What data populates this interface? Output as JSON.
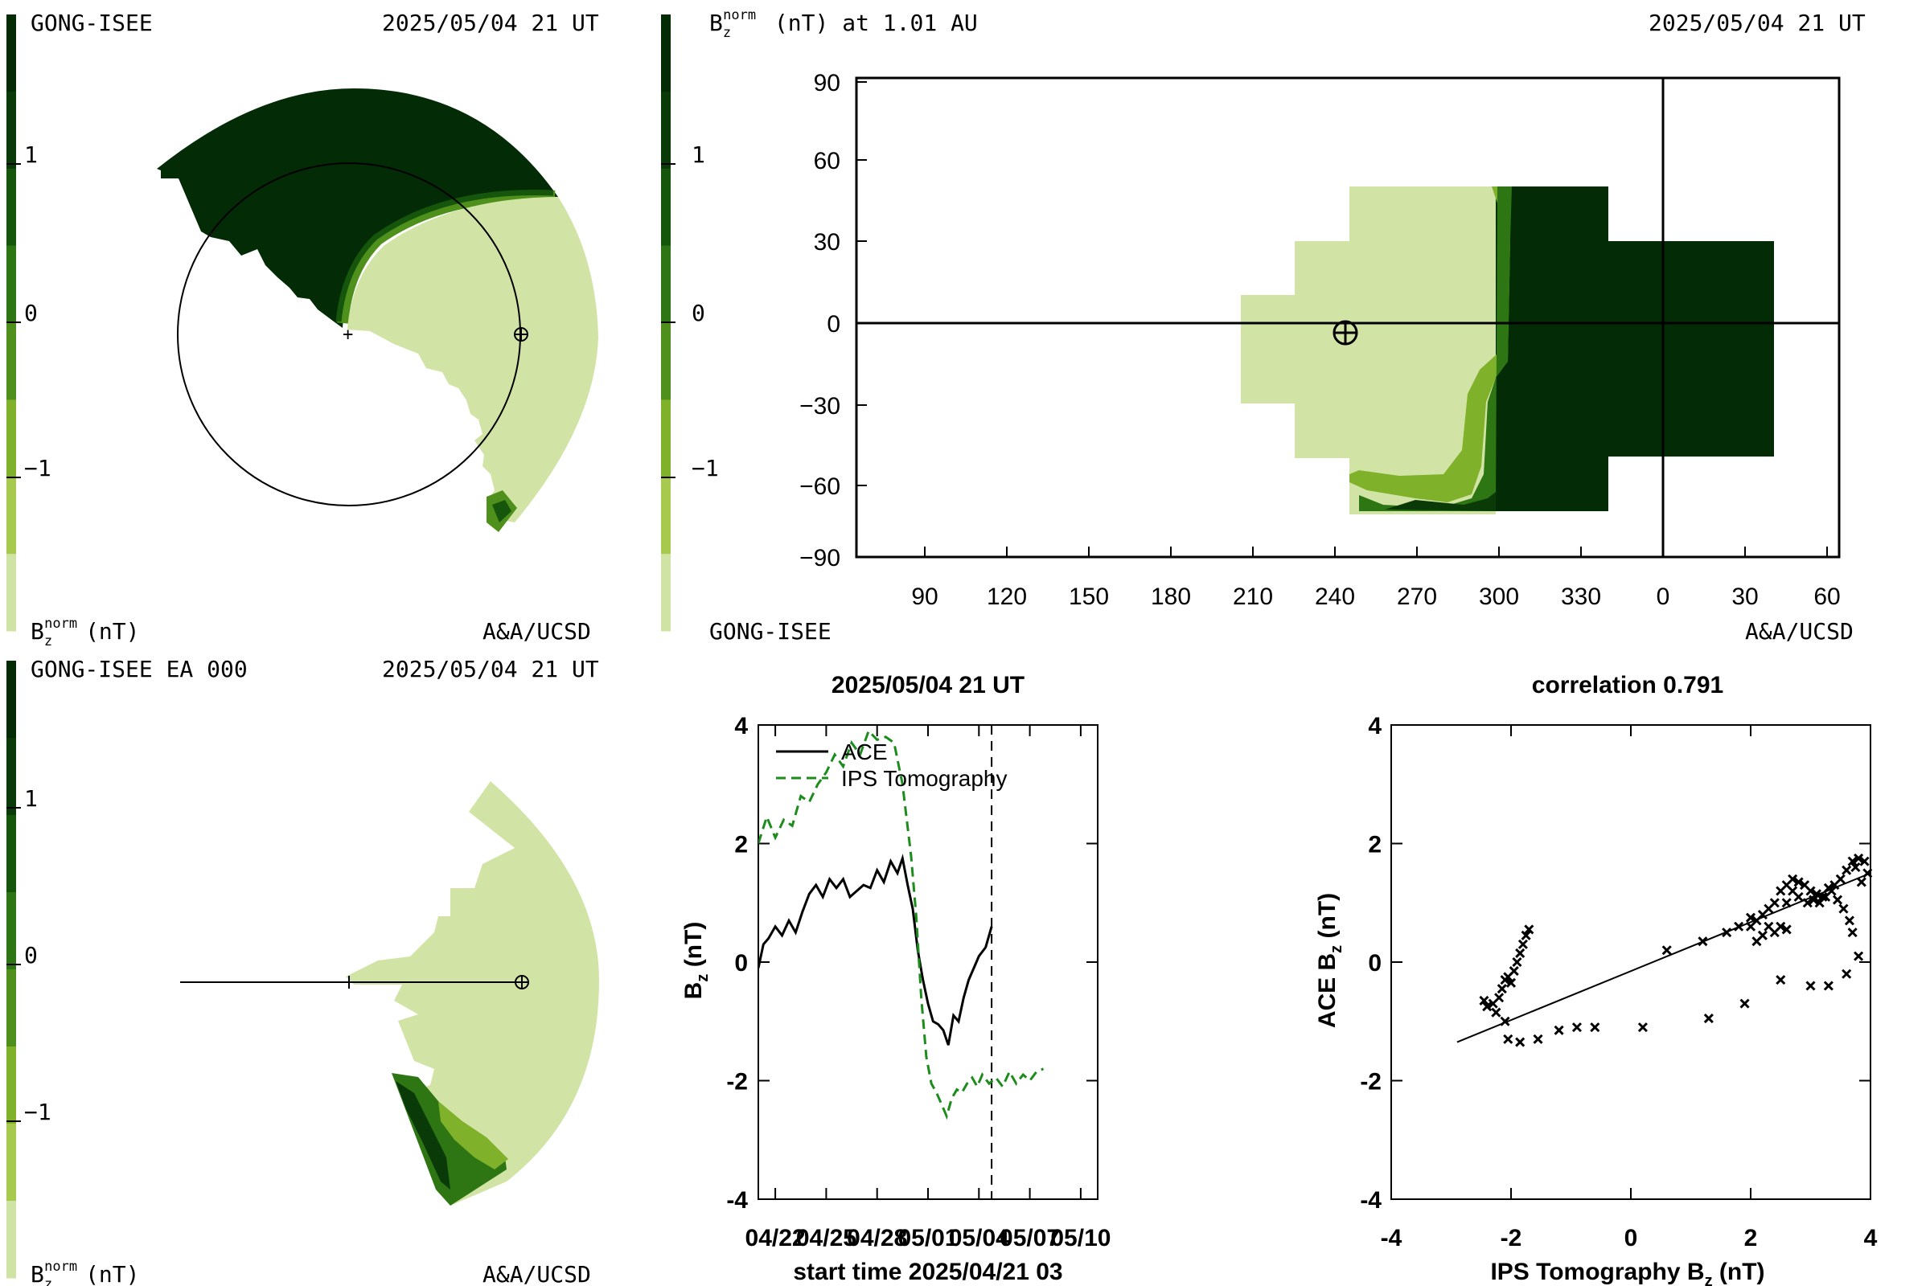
{
  "colors": {
    "scale": [
      "#cfe3a5",
      "#a6c94e",
      "#7fb12a",
      "#4f8f1b",
      "#2d7613",
      "#16550c",
      "#0a3a08",
      "#032b05"
    ],
    "light": "#d2e4a5",
    "dark": "#032b05",
    "ace_line": "#000000",
    "ips_line": "#1c8c1c"
  },
  "colorbar": {
    "ticks": [
      "1",
      "0",
      "−1"
    ]
  },
  "panels": {
    "top_left": {
      "title_left": "GONG-ISEE",
      "title_right": "2025/05/04 21 UT",
      "bottom_left": "B",
      "bottom_right": "A&A/UCSD"
    },
    "top_right": {
      "title_left": "B",
      "title_left_suffix": " (nT) at 1.01 AU",
      "title_right": "2025/05/04 21 UT",
      "bottom_left": "GONG-ISEE",
      "bottom_right": "A&A/UCSD"
    },
    "bottom_left": {
      "title_left": "GONG-ISEE EA 000",
      "title_right": "2025/05/04 21 UT",
      "bottom_left": "B",
      "bottom_right": "A&A/UCSD"
    }
  },
  "units": {
    "nT": "(nT)",
    "sub_z": "z",
    "sup_norm": "norm"
  },
  "chart_data": [
    {
      "type": "heatmap",
      "name": "synoptic map",
      "x_ticks": [
        "90",
        "120",
        "150",
        "180",
        "210",
        "240",
        "270",
        "300",
        "330",
        "0",
        "30",
        "60"
      ],
      "y_ticks": [
        "90",
        "60",
        "30",
        "0",
        "−30",
        "−60",
        "−90"
      ],
      "ylim": [
        -90,
        90
      ],
      "earth_position": [
        243,
        -3
      ]
    },
    {
      "type": "line",
      "title": "2025/05/04 21 UT",
      "xlabel": "start time 2025/04/21 03",
      "ylabel": "B",
      "ylabel_sub": "z",
      "ylabel_suffix": " (nT)",
      "ylim": [
        -4,
        4
      ],
      "xlim": [
        0,
        20
      ],
      "x_tick_labels": [
        "04/22",
        "04/25",
        "04/28",
        "05/01",
        "05/04",
        "05/07",
        "05/10"
      ],
      "x_tick_values": [
        1,
        4,
        7,
        10,
        13,
        16,
        19
      ],
      "y_ticks": [
        "4",
        "2",
        "0",
        "-2",
        "-4"
      ],
      "vline_x": 13.75,
      "series": [
        {
          "name": "ACE",
          "style": "solid",
          "x": [
            0,
            0.3,
            0.6,
            1,
            1.4,
            1.8,
            2.2,
            2.6,
            3,
            3.4,
            3.8,
            4.2,
            4.6,
            5,
            5.4,
            5.8,
            6.2,
            6.6,
            7,
            7.4,
            7.8,
            8.2,
            8.5,
            8.8,
            9.1,
            9.4,
            9.7,
            10,
            10.3,
            10.6,
            10.9,
            11.2,
            11.5,
            11.8,
            12.1,
            12.4,
            12.7,
            13,
            13.4,
            13.75
          ],
          "y": [
            -0.1,
            0.3,
            0.4,
            0.6,
            0.45,
            0.7,
            0.5,
            0.85,
            1.15,
            1.3,
            1.1,
            1.4,
            1.25,
            1.4,
            1.1,
            1.2,
            1.3,
            1.25,
            1.55,
            1.35,
            1.7,
            1.5,
            1.75,
            1.3,
            0.9,
            0.2,
            -0.3,
            -0.7,
            -1.0,
            -1.05,
            -1.15,
            -1.4,
            -0.9,
            -1.0,
            -0.6,
            -0.3,
            -0.1,
            0.1,
            0.25,
            0.6
          ]
        },
        {
          "name": "IPS Tomography",
          "style": "dashed",
          "x": [
            0,
            0.5,
            1,
            1.5,
            2,
            2.5,
            3,
            3.5,
            4,
            4.5,
            5,
            5.5,
            6,
            6.5,
            7,
            7.5,
            8,
            8.5,
            9,
            9.3,
            9.6,
            9.9,
            10.2,
            10.5,
            10.8,
            11.1,
            11.4,
            11.7,
            12,
            12.3,
            12.6,
            12.9,
            13.2,
            13.6,
            14,
            14.4,
            14.8,
            15.2,
            15.6,
            16,
            16.4,
            16.8
          ],
          "y": [
            2.0,
            2.45,
            2.1,
            2.4,
            2.3,
            2.8,
            2.7,
            3.0,
            3.2,
            3.5,
            3.3,
            3.7,
            3.5,
            3.9,
            3.75,
            3.8,
            3.7,
            3.0,
            1.8,
            0.8,
            -0.6,
            -1.6,
            -2.05,
            -2.2,
            -2.4,
            -2.6,
            -2.3,
            -2.15,
            -2.2,
            -2.05,
            -1.95,
            -2.1,
            -1.9,
            -2.05,
            -1.95,
            -2.1,
            -1.85,
            -2.05,
            -1.9,
            -2.0,
            -1.85,
            -1.8
          ]
        }
      ]
    },
    {
      "type": "scatter",
      "title": "correlation 0.791",
      "xlabel": "IPS Tomography B",
      "xlabel_sub": "z",
      "xlabel_suffix": " (nT)",
      "ylabel": "ACE B",
      "ylabel_sub": "z",
      "ylabel_suffix": " (nT)",
      "xlim": [
        -4,
        4
      ],
      "ylim": [
        -4,
        4
      ],
      "x_ticks": [
        "-4",
        "-2",
        "0",
        "2",
        "4"
      ],
      "y_ticks": [
        "4",
        "2",
        "0",
        "-2",
        "-4"
      ],
      "fit_line": {
        "x": [
          -2.9,
          4.0
        ],
        "y": [
          -1.35,
          1.5
        ]
      },
      "points": [
        [
          -2.3,
          -0.7
        ],
        [
          -2.25,
          -0.85
        ],
        [
          -2.2,
          -0.6
        ],
        [
          -2.15,
          -0.45
        ],
        [
          -2.1,
          -0.3
        ],
        [
          -2.05,
          -0.25
        ],
        [
          -2.0,
          -0.35
        ],
        [
          -1.95,
          -0.15
        ],
        [
          -1.9,
          0.0
        ],
        [
          -1.85,
          0.15
        ],
        [
          -1.8,
          0.3
        ],
        [
          -1.75,
          0.45
        ],
        [
          -1.7,
          0.55
        ],
        [
          -2.4,
          -0.75
        ],
        [
          -2.45,
          -0.65
        ],
        [
          -2.1,
          -1.0
        ],
        [
          -2.05,
          -1.3
        ],
        [
          -1.85,
          -1.35
        ],
        [
          -1.55,
          -1.3
        ],
        [
          -1.2,
          -1.15
        ],
        [
          -0.9,
          -1.1
        ],
        [
          -0.6,
          -1.1
        ],
        [
          0.2,
          -1.1
        ],
        [
          1.3,
          -0.95
        ],
        [
          1.9,
          -0.7
        ],
        [
          2.5,
          -0.3
        ],
        [
          3.0,
          -0.4
        ],
        [
          3.3,
          -0.4
        ],
        [
          3.6,
          -0.2
        ],
        [
          3.8,
          0.1
        ],
        [
          2.0,
          0.6
        ],
        [
          2.1,
          0.7
        ],
        [
          2.2,
          0.8
        ],
        [
          2.3,
          0.9
        ],
        [
          2.4,
          1.0
        ],
        [
          2.5,
          1.2
        ],
        [
          2.6,
          1.3
        ],
        [
          2.7,
          1.4
        ],
        [
          2.8,
          1.35
        ],
        [
          2.9,
          1.3
        ],
        [
          3.0,
          1.2
        ],
        [
          3.1,
          1.15
        ],
        [
          3.2,
          1.1
        ],
        [
          3.3,
          1.25
        ],
        [
          3.4,
          1.3
        ],
        [
          3.5,
          1.4
        ],
        [
          3.6,
          1.55
        ],
        [
          3.7,
          1.7
        ],
        [
          3.8,
          1.75
        ],
        [
          3.9,
          1.7
        ],
        [
          2.6,
          1.0
        ],
        [
          2.7,
          1.2
        ],
        [
          2.8,
          1.1
        ],
        [
          2.95,
          1.0
        ],
        [
          3.05,
          1.05
        ],
        [
          3.15,
          1.0
        ],
        [
          3.25,
          1.1
        ],
        [
          3.35,
          1.2
        ],
        [
          3.45,
          1.05
        ],
        [
          3.55,
          0.9
        ],
        [
          3.65,
          0.7
        ],
        [
          3.7,
          0.5
        ],
        [
          2.4,
          0.5
        ],
        [
          2.3,
          0.6
        ],
        [
          2.2,
          0.45
        ],
        [
          2.5,
          0.6
        ],
        [
          2.6,
          0.55
        ],
        [
          2.1,
          0.35
        ],
        [
          0.6,
          0.2
        ],
        [
          1.2,
          0.35
        ],
        [
          1.6,
          0.5
        ],
        [
          1.8,
          0.6
        ],
        [
          2.0,
          0.75
        ],
        [
          3.95,
          1.5
        ],
        [
          3.85,
          1.35
        ],
        [
          3.75,
          1.6
        ]
      ]
    }
  ]
}
